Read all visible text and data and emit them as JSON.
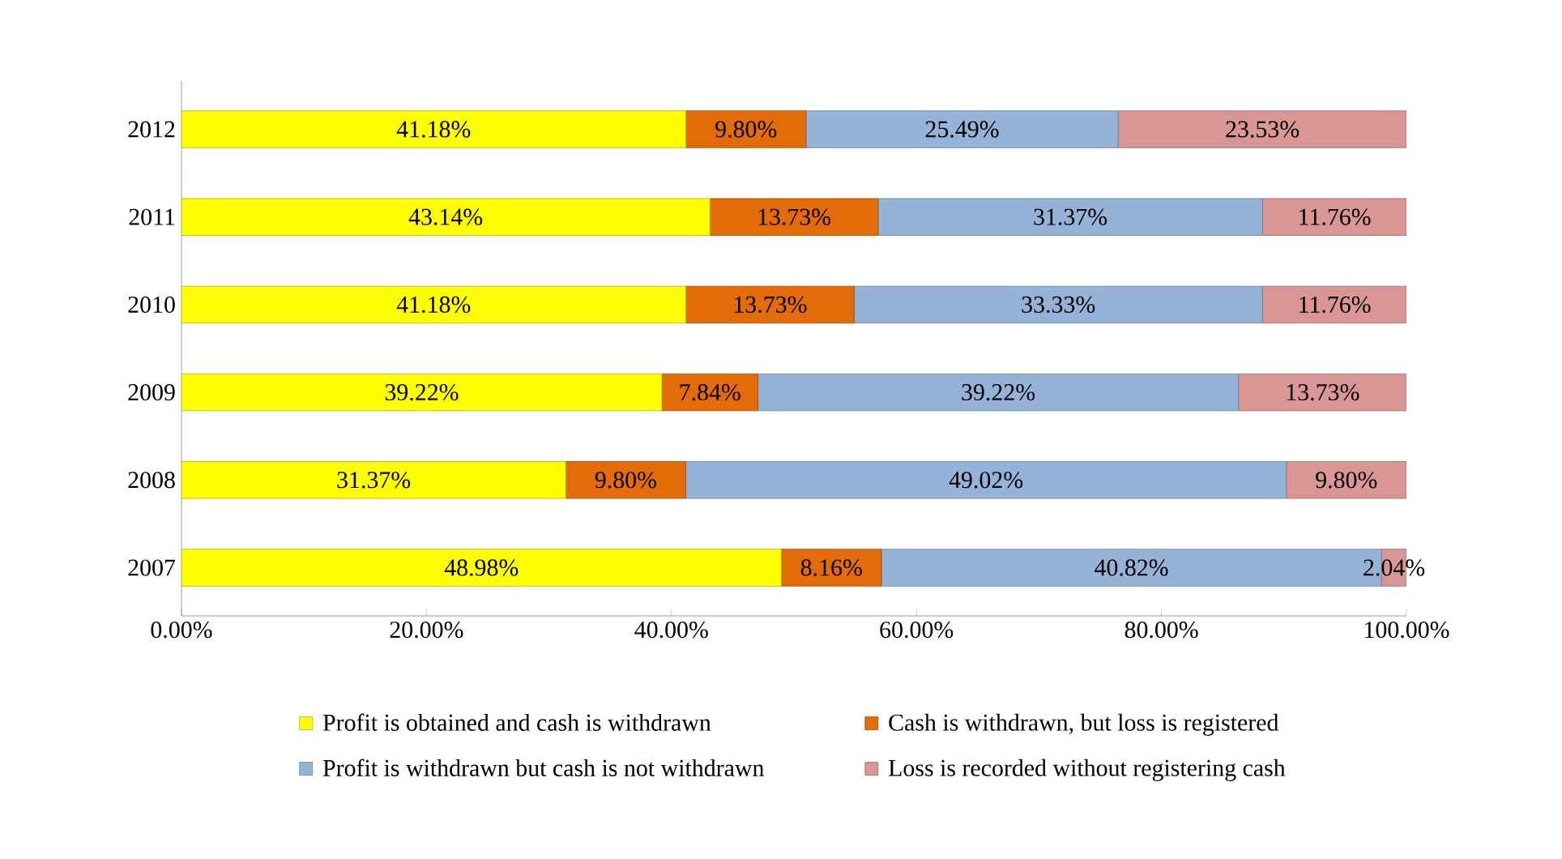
{
  "chart_data": {
    "type": "bar",
    "orientation": "horizontal",
    "stacked": true,
    "legend": "bottom",
    "categories": [
      "2012",
      "2011",
      "2010",
      "2009",
      "2008",
      "2007"
    ],
    "xlim": [
      0,
      100
    ],
    "xticks": [
      {
        "value": 0,
        "label": "0.00%"
      },
      {
        "value": 20,
        "label": "20.00%"
      },
      {
        "value": 40,
        "label": "40.00%"
      },
      {
        "value": 60,
        "label": "60.00%"
      },
      {
        "value": 80,
        "label": "80.00%"
      },
      {
        "value": 100,
        "label": "100.00%"
      }
    ],
    "series": [
      {
        "name": "Profit is obtained and cash is withdrawn",
        "color": "#ffff00",
        "values": [
          41.18,
          43.14,
          41.18,
          39.22,
          31.37,
          48.98
        ],
        "value_labels": [
          "41.18%",
          "43.14%",
          "41.18%",
          "39.22%",
          "31.37%",
          "48.98%"
        ]
      },
      {
        "name": "Cash is withdrawn, but loss is registered",
        "color": "#e36c09",
        "values": [
          9.8,
          13.73,
          13.73,
          7.84,
          9.8,
          8.16
        ],
        "value_labels": [
          "9.80%",
          "13.73%",
          "13.73%",
          "7.84%",
          "9.80%",
          "8.16%"
        ]
      },
      {
        "name": "Profit is withdrawn but cash is not withdrawn",
        "color": "#95b3d7",
        "values": [
          25.49,
          31.37,
          33.33,
          39.22,
          49.02,
          40.82
        ],
        "value_labels": [
          "25.49%",
          "31.37%",
          "33.33%",
          "39.22%",
          "49.02%",
          "40.82%"
        ]
      },
      {
        "name": "Loss is recorded without registering cash",
        "color": "#d99694",
        "values": [
          23.53,
          11.76,
          11.76,
          13.73,
          9.8,
          2.04
        ],
        "value_labels": [
          "23.53%",
          "11.76%",
          "11.76%",
          "13.73%",
          "9.80%",
          "2.04%"
        ]
      }
    ]
  }
}
